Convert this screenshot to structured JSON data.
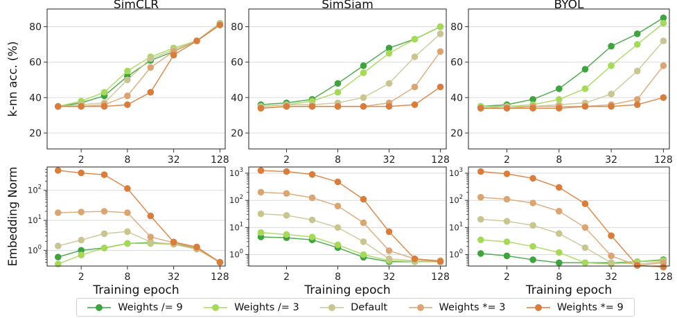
{
  "chart_data": {
    "type": "line",
    "x": [
      1,
      2,
      4,
      8,
      16,
      32,
      64,
      128
    ],
    "xticks": [
      "2",
      "8",
      "32",
      "128"
    ],
    "xlabel": "Training epoch",
    "legend": {
      "placement": "bottom",
      "entries": [
        "Weights /= 9",
        "Weights /= 3",
        "Default",
        "Weights *= 3",
        "Weights *= 9"
      ]
    },
    "colors": [
      "#3fa33f",
      "#a6d85a",
      "#c9c591",
      "#dba572",
      "#d97d3c"
    ],
    "columns": [
      "SimCLR",
      "SimSiam",
      "BYOL"
    ],
    "rows": [
      {
        "ylabel": "k-nn acc. (%)",
        "scale": "linear",
        "yticks": [
          "20",
          "40",
          "60",
          "80"
        ],
        "panels": [
          {
            "title": "SimCLR",
            "series": [
              [
                35,
                37,
                41,
                52,
                61,
                66,
                72,
                82
              ],
              [
                35,
                38,
                43,
                55,
                63,
                68,
                72,
                82
              ],
              [
                35,
                36,
                37,
                50,
                62,
                67,
                72,
                82
              ],
              [
                35,
                35,
                36,
                41,
                57,
                66,
                72,
                81
              ],
              [
                35,
                35,
                35,
                36,
                43,
                64,
                72,
                81
              ]
            ]
          },
          {
            "title": "SimSiam",
            "series": [
              [
                36,
                37,
                39,
                48,
                58,
                68,
                73,
                80
              ],
              [
                35,
                36,
                38,
                43,
                54,
                65,
                73,
                80
              ],
              [
                35,
                36,
                36,
                37,
                40,
                48,
                63,
                76
              ],
              [
                34,
                35,
                35,
                35,
                35,
                37,
                46,
                66
              ],
              [
                34,
                35,
                35,
                35,
                35,
                35,
                36,
                46
              ]
            ]
          },
          {
            "title": "BYOL",
            "series": [
              [
                35,
                36,
                39,
                45,
                56,
                69,
                76,
                85
              ],
              [
                35,
                35,
                36,
                39,
                45,
                58,
                70,
                82
              ],
              [
                34,
                35,
                35,
                36,
                37,
                42,
                55,
                72
              ],
              [
                34,
                34,
                35,
                35,
                35,
                36,
                39,
                58
              ],
              [
                34,
                34,
                34,
                34,
                35,
                35,
                36,
                40
              ]
            ]
          }
        ]
      },
      {
        "ylabel": "Embedding Norm",
        "scale": "log",
        "yticks": [
          "10^0",
          "10^1",
          "10^2",
          "10^3"
        ],
        "panels": [
          {
            "title": "",
            "series": [
              [
                0.6,
                1.0,
                1.2,
                1.7,
                1.8,
                1.6,
                1.2,
                0.4
              ],
              [
                0.35,
                0.7,
                1.2,
                1.7,
                1.7,
                1.6,
                1.1,
                0.4
              ],
              [
                1.4,
                2.2,
                3.6,
                4.2,
                1.9,
                1.6,
                1.1,
                0.4
              ],
              [
                18,
                19,
                20,
                18,
                2.8,
                1.8,
                1.2,
                0.4
              ],
              [
                460,
                380,
                330,
                115,
                14,
                1.9,
                1.3,
                0.4
              ]
            ]
          },
          {
            "title": "",
            "series": [
              [
                4.5,
                4.2,
                3.5,
                1.8,
                0.8,
                0.55,
                0.55,
                0.55
              ],
              [
                6.5,
                5.5,
                4.5,
                2.3,
                1.0,
                0.6,
                0.55,
                0.55
              ],
              [
                32,
                28,
                19,
                10,
                3.0,
                0.7,
                0.6,
                0.55
              ],
              [
                200,
                180,
                125,
                62,
                15,
                1.4,
                0.7,
                0.6
              ],
              [
                1250,
                1150,
                900,
                480,
                110,
                7,
                0.7,
                0.55
              ]
            ]
          },
          {
            "title": "",
            "series": [
              [
                1.1,
                0.9,
                0.65,
                0.5,
                0.5,
                0.5,
                0.55,
                0.65
              ],
              [
                3.5,
                3.0,
                2.0,
                1.2,
                0.5,
                0.45,
                0.55,
                0.6
              ],
              [
                20,
                17,
                12,
                6,
                1.8,
                0.5,
                0.45,
                0.55
              ],
              [
                130,
                110,
                80,
                40,
                10,
                0.9,
                0.4,
                0.5
              ],
              [
                1150,
                950,
                650,
                300,
                75,
                5,
                0.4,
                0.35
              ]
            ]
          }
        ]
      }
    ]
  }
}
